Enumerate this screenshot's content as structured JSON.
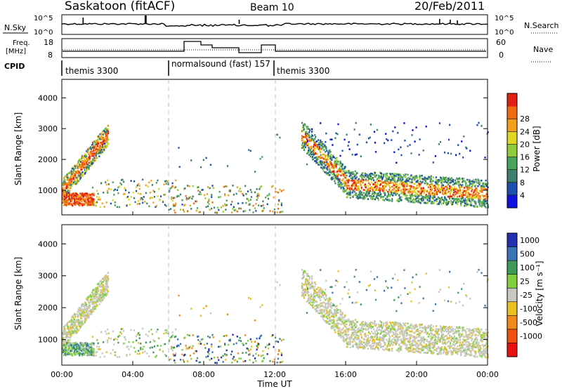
{
  "header": {
    "station": "Saskatoon (fitACF)",
    "beam": "Beam 10",
    "date": "20/Feb/2011"
  },
  "sky_panel": {
    "left_label": "N.Sky",
    "left_ticks": [
      "10^5",
      "10^0"
    ],
    "right_ticks": [
      "10^5",
      "10^0"
    ],
    "right_label": "N.Search"
  },
  "freq_panel": {
    "left_label_line1": "Freq.",
    "left_label_line2": "[MHz]",
    "left_ticks": [
      "18",
      "8"
    ],
    "right_ticks": [
      "60",
      "0"
    ],
    "right_label": "Nave"
  },
  "cpid": {
    "label": "CPID",
    "segments": [
      {
        "start": 0,
        "end": 6,
        "name": "themis 3300"
      },
      {
        "start": 6,
        "end": 12,
        "name": "normalsound (fast) 157"
      },
      {
        "start": 12,
        "end": 24,
        "name": "themis 3300"
      }
    ]
  },
  "chart_data": [
    {
      "type": "heatmap",
      "name": "power",
      "ylabel": "Slant Range [km]",
      "ylim": [
        200,
        4600
      ],
      "yticks": [
        "1000",
        "2000",
        "3000",
        "4000"
      ],
      "colorbar_label": "Power [dB]",
      "colorbar_ticks": [
        "4",
        "8",
        "12",
        "16",
        "20",
        "24",
        "28"
      ],
      "colorbar_colors": [
        "#1010e0",
        "#1d4faf",
        "#3e7f6f",
        "#4aa35a",
        "#90cc3a",
        "#e0d820",
        "#f2a018",
        "#ef6a10",
        "#e02010"
      ],
      "regions_hours_km": [
        {
          "t0": 0.0,
          "t1": 2.6,
          "r0": 400,
          "r1": 3100,
          "desc": "arc"
        },
        {
          "t0": 1.7,
          "t1": 6.4,
          "r0": 400,
          "r1": 1400
        },
        {
          "t0": 6.0,
          "t1": 12.5,
          "r0": 250,
          "r1": 3000
        },
        {
          "t0": 13.5,
          "t1": 24.0,
          "r0": 500,
          "r1": 3500
        }
      ]
    },
    {
      "type": "heatmap",
      "name": "velocity",
      "ylabel": "Slant Range [km]",
      "xlabel": "Time UT",
      "ylim": [
        200,
        4600
      ],
      "xlim": [
        0,
        24
      ],
      "yticks": [
        "1000",
        "2000",
        "3000",
        "4000"
      ],
      "xticks": [
        "00:00",
        "04:00",
        "08:00",
        "12:00",
        "16:00",
        "20:00",
        "00:00"
      ],
      "colorbar_label": "Velocity [m s⁻¹]",
      "colorbar_ticks": [
        "1000",
        "500",
        "100",
        "25",
        "-25",
        "-100",
        "-500",
        "-1000"
      ],
      "colorbar_colors": [
        "#2030b0",
        "#3a74b8",
        "#3f9a58",
        "#80d040",
        "#c8c8c0",
        "#e8c020",
        "#f08a18",
        "#f05010",
        "#e81010"
      ]
    }
  ]
}
